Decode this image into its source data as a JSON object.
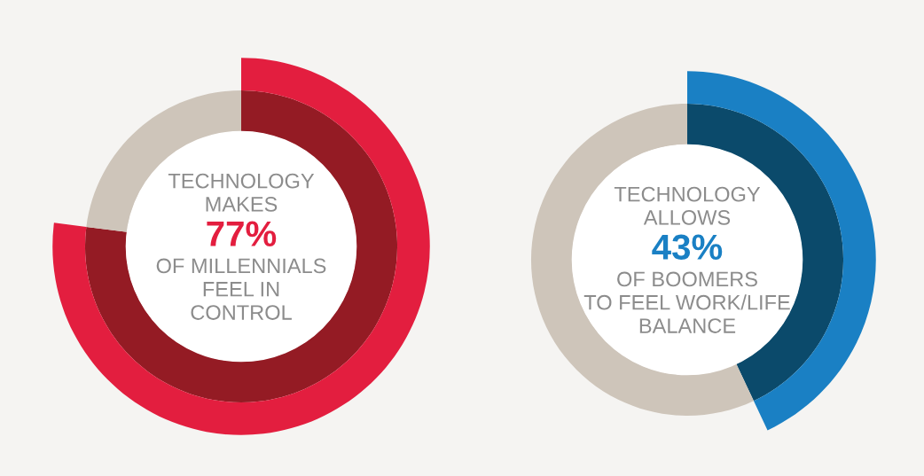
{
  "chart_data": [
    {
      "type": "donut",
      "categories": [
        null,
        null
      ],
      "values": [
        77,
        23
      ],
      "colors": [
        "#941b24",
        "#cec5ba"
      ],
      "value_labels": [
        "77%",
        null
      ],
      "annotations": [
        "TECHNOLOGY\nMAKES",
        "OF MILLENNIALS\nFEEL IN\nCONTROL"
      ]
    },
    {
      "type": "donut",
      "categories": [
        null,
        null
      ],
      "values": [
        43,
        57
      ],
      "colors": [
        "#0b4a6b",
        "#cec5ba"
      ],
      "value_labels": [
        "43%",
        null
      ],
      "annotations": [
        "TECHNOLOGY\nALLOWS",
        "OF BOOMERS\nTO FEEL WORK/LIFE\nBALANCE"
      ]
    }
  ]
}
